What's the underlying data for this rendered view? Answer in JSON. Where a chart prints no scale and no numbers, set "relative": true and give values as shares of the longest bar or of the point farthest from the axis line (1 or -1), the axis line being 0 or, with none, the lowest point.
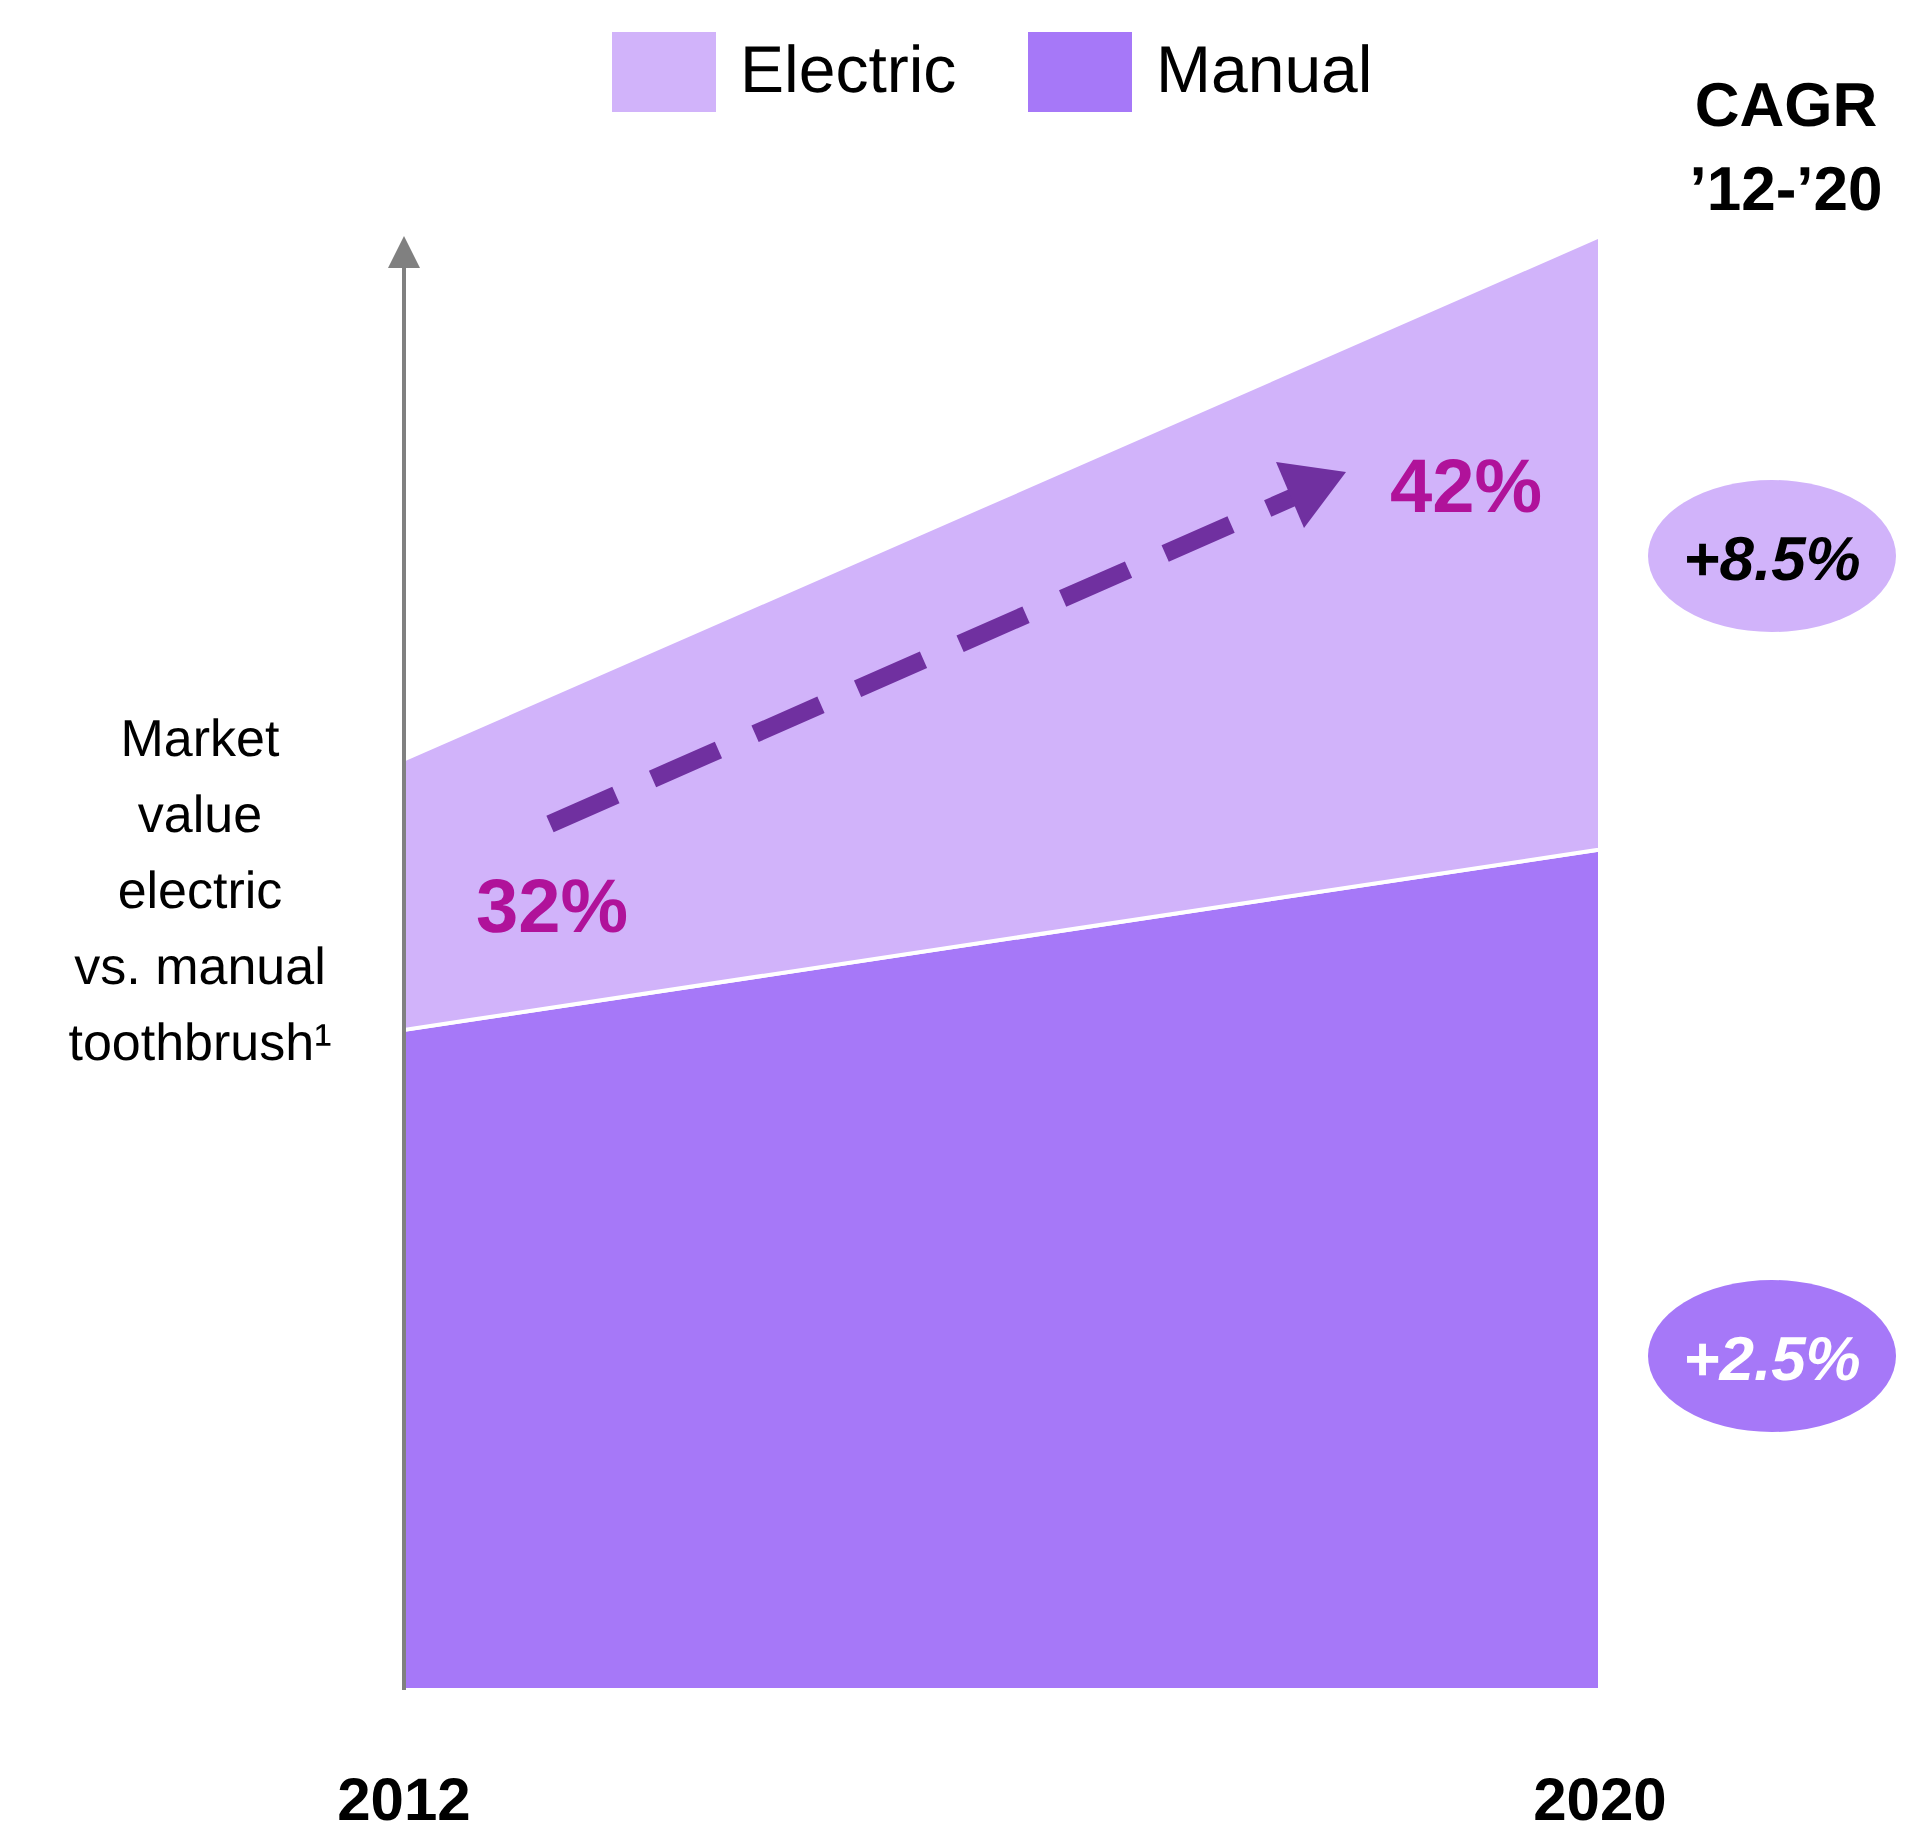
{
  "chart_data": {
    "type": "area",
    "stacked": true,
    "relative": true,
    "legend": "top",
    "ylabel": "Market value electric vs. manual toothbrush¹",
    "categories": [
      "2012",
      "2020"
    ],
    "series": [
      {
        "name": "Manual",
        "color": "#a678f8",
        "values": [
          0.454,
          0.578
        ]
      },
      {
        "name": "Electric",
        "color": "#d1b3fa",
        "values": [
          0.186,
          0.422
        ]
      }
    ],
    "annotations": [
      "CAGR ’12-’20",
      "32%",
      "42%",
      "+8.5%",
      "+2.5%"
    ]
  }
}
